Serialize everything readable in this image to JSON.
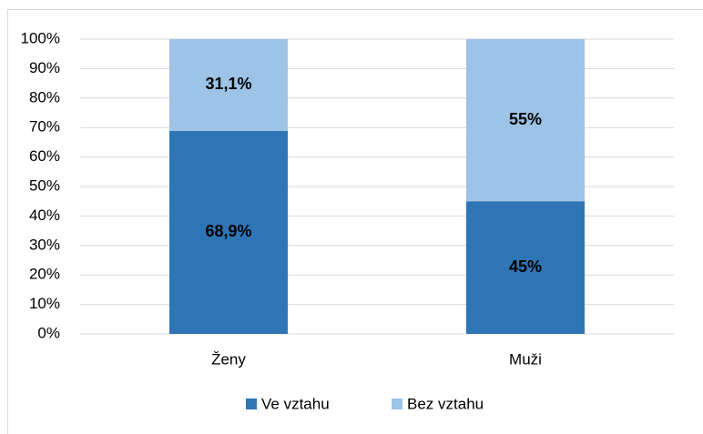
{
  "chart_data": {
    "type": "stacked_bar",
    "categories": [
      "Ženy",
      "Muži"
    ],
    "series": [
      {
        "name": "Ve vztahu",
        "color": "#2e75b6",
        "values": [
          68.9,
          45
        ],
        "value_labels": [
          "68,9%",
          "45%"
        ]
      },
      {
        "name": "Bez vztahu",
        "color": "#9dc3e6",
        "values": [
          31.1,
          55
        ],
        "value_labels": [
          "31,1%",
          "55%"
        ]
      }
    ],
    "ylim": [
      0,
      100
    ],
    "yticks": [
      {
        "value": 0,
        "label": "0%"
      },
      {
        "value": 10,
        "label": "10%"
      },
      {
        "value": 20,
        "label": "20%"
      },
      {
        "value": 30,
        "label": "30%"
      },
      {
        "value": 40,
        "label": "40%"
      },
      {
        "value": 50,
        "label": "50%"
      },
      {
        "value": 60,
        "label": "60%"
      },
      {
        "value": 70,
        "label": "70%"
      },
      {
        "value": 80,
        "label": "80%"
      },
      {
        "value": 90,
        "label": "90%"
      },
      {
        "value": 100,
        "label": "100%"
      }
    ],
    "grid": true,
    "legend": "bottom"
  }
}
